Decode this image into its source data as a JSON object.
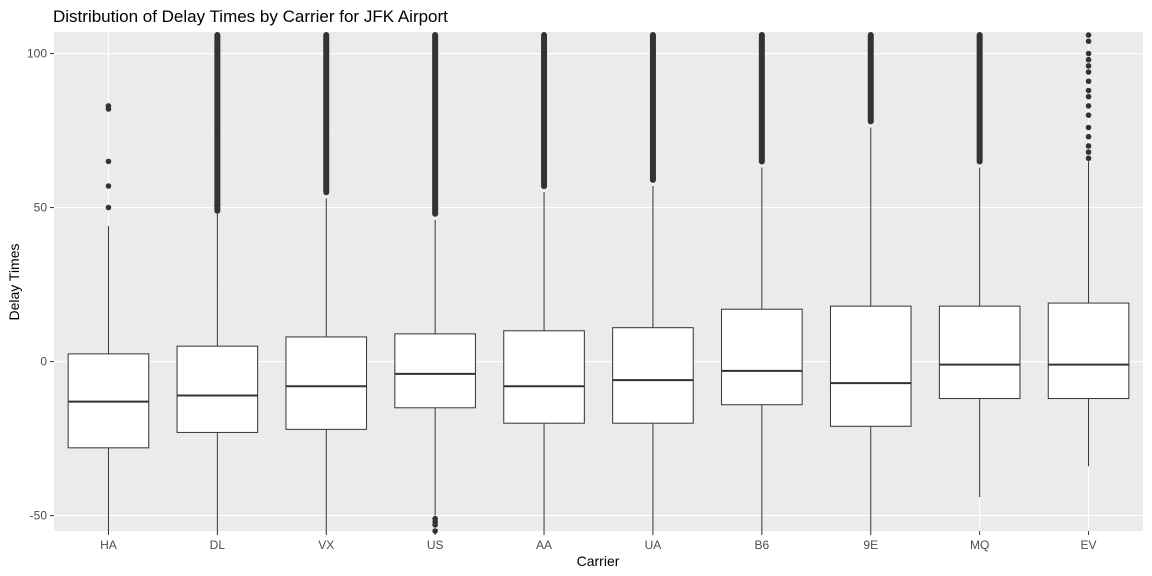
{
  "chart_data": {
    "type": "boxplot",
    "title": "Distribution of Delay Times by Carrier for JFK Airport",
    "xlabel": "Carrier",
    "ylabel": "Delay Times",
    "ylim": [
      -55,
      107
    ],
    "yticks": [
      -50,
      0,
      50,
      100
    ],
    "grid": true,
    "colors": {
      "panel_bg": "#ebebeb",
      "grid_major": "#ffffff",
      "grid_minor": "#f5f5f5",
      "box_fill": "#ffffff",
      "box_line": "#333333",
      "outlier": "#333333"
    },
    "categories": [
      "HA",
      "DL",
      "VX",
      "US",
      "AA",
      "UA",
      "B6",
      "9E",
      "MQ",
      "EV"
    ],
    "boxes": [
      {
        "carrier": "HA",
        "lower_whisker": -60,
        "q1": -28,
        "median": -13,
        "q3": 2.5,
        "upper_whisker": 44,
        "outliers": [
          50,
          57,
          65,
          82,
          83
        ],
        "outlier_range": null
      },
      {
        "carrier": "DL",
        "lower_whisker": -60,
        "q1": -23,
        "median": -11,
        "q3": 5,
        "upper_whisker": 48,
        "outliers": [],
        "outlier_range": [
          48,
          107
        ]
      },
      {
        "carrier": "VX",
        "lower_whisker": -60,
        "q1": -22,
        "median": -8,
        "q3": 8,
        "upper_whisker": 53,
        "outliers": [],
        "outlier_range": [
          54,
          107
        ]
      },
      {
        "carrier": "US",
        "lower_whisker": -50,
        "q1": -15,
        "median": -4,
        "q3": 9,
        "upper_whisker": 46,
        "outliers": [
          -51,
          -52,
          -53,
          -55,
          -57
        ],
        "outlier_range": [
          47,
          107
        ]
      },
      {
        "carrier": "AA",
        "lower_whisker": -60,
        "q1": -20,
        "median": -8,
        "q3": 10,
        "upper_whisker": 55,
        "outliers": [],
        "outlier_range": [
          56,
          107
        ]
      },
      {
        "carrier": "UA",
        "lower_whisker": -60,
        "q1": -20,
        "median": -6,
        "q3": 11,
        "upper_whisker": 57,
        "outliers": [],
        "outlier_range": [
          58,
          107
        ]
      },
      {
        "carrier": "B6",
        "lower_whisker": -60,
        "q1": -14,
        "median": -3,
        "q3": 17,
        "upper_whisker": 63,
        "outliers": [],
        "outlier_range": [
          64,
          107
        ]
      },
      {
        "carrier": "9E",
        "lower_whisker": -60,
        "q1": -21,
        "median": -7,
        "q3": 18,
        "upper_whisker": 76,
        "outliers": [],
        "outlier_range": [
          77,
          107
        ]
      },
      {
        "carrier": "MQ",
        "lower_whisker": -44,
        "q1": -12,
        "median": -1,
        "q3": 18,
        "upper_whisker": 63,
        "outliers": [],
        "outlier_range": [
          64,
          107
        ]
      },
      {
        "carrier": "EV",
        "lower_whisker": -34,
        "q1": -12,
        "median": -1,
        "q3": 19,
        "upper_whisker": 65,
        "outliers": [
          66,
          68,
          70,
          73,
          76,
          80,
          83,
          86,
          88,
          91,
          94,
          96,
          98,
          100,
          104,
          106
        ],
        "outlier_range": null
      }
    ]
  }
}
